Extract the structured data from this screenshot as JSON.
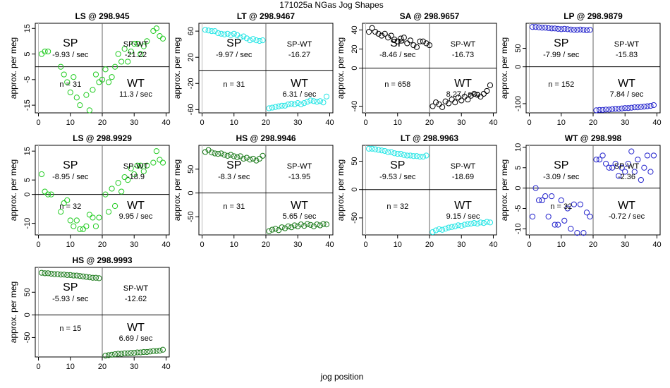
{
  "figure_title": "171025a    NGas Jog Shapes",
  "xlabel": "jog position",
  "ylabel": "approx. per meg",
  "colors": {
    "green": "#22cc22",
    "cyan": "#22e5e5",
    "black": "#000000",
    "blue": "#2222cc",
    "darkgreen": "#1a7a1a"
  },
  "chart_data": [
    {
      "type": "scatter",
      "title": "LS @ 298.945",
      "color": "green",
      "xlim": [
        -1,
        41
      ],
      "ylim": [
        -18,
        17
      ],
      "yticks": [
        -15,
        -5,
        5,
        15
      ],
      "xticks": [
        0,
        10,
        20,
        30,
        40
      ],
      "n_label": "n = 31",
      "sp_label": "SP",
      "sp_value": "-9.93 / sec",
      "wt_label": "WT",
      "wt_value": "11.3 / sec",
      "spwt_label": "SP-WT",
      "spwt_value": "-21.22",
      "x": [
        1,
        2,
        3,
        7,
        8,
        9,
        10,
        11,
        12,
        13,
        15,
        16,
        17,
        18,
        19,
        20,
        21,
        22,
        23,
        24,
        25,
        26,
        27,
        28,
        29,
        30,
        31,
        32,
        33,
        34,
        36,
        37,
        38,
        39
      ],
      "y": [
        5,
        6,
        6,
        0,
        -3,
        -6,
        -10,
        -4,
        -12,
        -15,
        -11,
        -17,
        -9,
        -3,
        -6,
        -5,
        -1,
        -6,
        -4,
        0,
        5,
        2,
        7,
        2,
        6,
        9,
        9,
        5,
        8,
        10,
        14,
        15,
        12,
        11
      ]
    },
    {
      "type": "scatter",
      "title": "LT @ 298.9467",
      "color": "cyan",
      "xlim": [
        -1,
        41
      ],
      "ylim": [
        -65,
        72
      ],
      "yticks": [
        -60,
        -20,
        20,
        60
      ],
      "xticks": [
        0,
        10,
        20,
        30,
        40
      ],
      "n_label": "n = 31",
      "sp_label": "SP",
      "sp_value": "-9.97 / sec",
      "wt_label": "WT",
      "wt_value": "6.31 / sec",
      "spwt_label": "SP-WT",
      "spwt_value": "-16.27",
      "x": [
        1,
        2,
        3,
        4,
        5,
        6,
        7,
        8,
        9,
        10,
        11,
        12,
        13,
        14,
        15,
        16,
        17,
        18,
        19,
        21,
        22,
        23,
        24,
        25,
        26,
        27,
        28,
        29,
        30,
        31,
        32,
        33,
        34,
        35,
        36,
        37,
        38,
        39
      ],
      "y": [
        62,
        61,
        60,
        60,
        57,
        56,
        55,
        56,
        54,
        56,
        54,
        50,
        52,
        49,
        46,
        48,
        46,
        45,
        46,
        -58,
        -57,
        -56,
        -55,
        -54,
        -54,
        -52,
        -51,
        -52,
        -50,
        -52,
        -50,
        -48,
        -46,
        -47,
        -48,
        -47,
        -49,
        -40
      ]
    },
    {
      "type": "scatter",
      "title": "SA @ 298.9657",
      "color": "black",
      "xlim": [
        -1,
        41
      ],
      "ylim": [
        -47,
        47
      ],
      "yticks": [
        -40,
        0,
        20,
        40
      ],
      "xticks": [
        0,
        10,
        20,
        30,
        40
      ],
      "n_label": "n = 658",
      "sp_label": "SP",
      "sp_value": "-8.46 / sec",
      "wt_label": "WT",
      "wt_value": "8.27 / sec",
      "spwt_label": "SP-WT",
      "spwt_value": "-16.73",
      "x": [
        1,
        2,
        3,
        4,
        5,
        6,
        7,
        8,
        9,
        10,
        11,
        12,
        13,
        14,
        15,
        16,
        17,
        18,
        19,
        20,
        21,
        22,
        23,
        24,
        25,
        26,
        27,
        28,
        29,
        30,
        31,
        32,
        33,
        34,
        35,
        36,
        37,
        38,
        39
      ],
      "y": [
        38,
        42,
        38,
        36,
        34,
        36,
        32,
        34,
        30,
        28,
        31,
        32,
        26,
        29,
        24,
        22,
        28,
        28,
        26,
        24,
        -40,
        -36,
        -38,
        -41,
        -35,
        -37,
        -33,
        -36,
        -31,
        -34,
        -30,
        -33,
        -29,
        -27,
        -28,
        -30,
        -27,
        -24,
        -18
      ]
    },
    {
      "type": "scatter",
      "title": "LP @ 298.9879",
      "color": "blue",
      "xlim": [
        -1,
        41
      ],
      "ylim": [
        -125,
        118
      ],
      "yticks": [
        -100,
        0,
        50
      ],
      "xticks": [
        0,
        10,
        20,
        30,
        40
      ],
      "n_label": "n = 152",
      "sp_label": "SP",
      "sp_value": "-7.99 / sec",
      "wt_label": "WT",
      "wt_value": "7.84 / sec",
      "spwt_label": "SP-WT",
      "spwt_value": "-15.83",
      "x": [
        1,
        2,
        3,
        4,
        5,
        6,
        7,
        8,
        9,
        10,
        11,
        12,
        13,
        14,
        15,
        16,
        17,
        18,
        19,
        21,
        22,
        23,
        24,
        25,
        26,
        27,
        28,
        29,
        30,
        31,
        32,
        33,
        34,
        35,
        36,
        37,
        38,
        39
      ],
      "y": [
        108,
        108,
        107,
        106,
        106,
        105,
        104,
        104,
        103,
        102,
        103,
        102,
        101,
        100,
        100,
        101,
        100,
        99,
        100,
        -118,
        -117,
        -117,
        -116,
        -116,
        -115,
        -114,
        -114,
        -113,
        -112,
        -112,
        -111,
        -110,
        -110,
        -109,
        -108,
        -107,
        -106,
        -104
      ]
    },
    {
      "type": "scatter",
      "title": "LS @ 298.9929",
      "color": "green",
      "xlim": [
        -1,
        41
      ],
      "ylim": [
        -14,
        17
      ],
      "yticks": [
        -10,
        0,
        5,
        15
      ],
      "xticks": [
        0,
        10,
        20,
        30,
        40
      ],
      "n_label": "n = 32",
      "sp_label": "SP",
      "sp_value": "-8.95 / sec",
      "wt_label": "WT",
      "wt_value": "9.95 / sec",
      "spwt_label": "SP-WT",
      "spwt_value": "-18.9",
      "x": [
        1,
        2,
        3,
        4,
        7,
        8,
        9,
        10,
        11,
        12,
        13,
        14,
        15,
        16,
        17,
        18,
        19,
        21,
        22,
        23,
        24,
        25,
        26,
        27,
        28,
        29,
        30,
        31,
        32,
        33,
        34,
        36,
        37,
        38,
        39
      ],
      "y": [
        7,
        1,
        0,
        0,
        -6,
        -3,
        -2,
        -9,
        -11,
        -9,
        -12,
        -12,
        -11,
        -7,
        -8,
        -11,
        -8,
        0,
        -6,
        2,
        -4,
        4,
        1,
        6,
        5,
        9,
        7,
        10,
        10,
        8,
        10,
        11,
        15,
        12,
        11
      ]
    },
    {
      "type": "scatter",
      "title": "HS @ 298.9946",
      "color": "darkgreen",
      "xlim": [
        -1,
        41
      ],
      "ylim": [
        -88,
        100
      ],
      "yticks": [
        -50,
        0,
        50
      ],
      "xticks": [
        0,
        10,
        20,
        30,
        40
      ],
      "n_label": "n = 31",
      "sp_label": "SP",
      "sp_value": "-8.3 / sec",
      "wt_label": "WT",
      "wt_value": "5.65 / sec",
      "spwt_label": "SP-WT",
      "spwt_value": "-13.95",
      "x": [
        1,
        2,
        3,
        4,
        5,
        6,
        7,
        8,
        9,
        10,
        11,
        12,
        13,
        14,
        15,
        16,
        17,
        18,
        19,
        21,
        22,
        23,
        24,
        25,
        26,
        27,
        28,
        29,
        30,
        31,
        32,
        33,
        34,
        35,
        36,
        37,
        38,
        39
      ],
      "y": [
        86,
        90,
        85,
        83,
        82,
        83,
        80,
        78,
        80,
        77,
        75,
        77,
        72,
        74,
        70,
        72,
        68,
        72,
        78,
        -80,
        -77,
        -75,
        -78,
        -72,
        -74,
        -70,
        -72,
        -68,
        -70,
        -66,
        -69,
        -65,
        -67,
        -70,
        -66,
        -68,
        -65,
        -66
      ]
    },
    {
      "type": "scatter",
      "title": "LT @ 298.9963",
      "color": "cyan",
      "xlim": [
        -1,
        41
      ],
      "ylim": [
        -80,
        78
      ],
      "yticks": [
        -50,
        0,
        50
      ],
      "xticks": [
        0,
        10,
        20,
        30,
        40
      ],
      "n_label": "n = 32",
      "sp_label": "SP",
      "sp_value": "-9.53 / sec",
      "wt_label": "WT",
      "wt_value": "9.15 / sec",
      "spwt_label": "SP-WT",
      "spwt_value": "-18.69",
      "x": [
        1,
        2,
        3,
        4,
        5,
        6,
        7,
        8,
        9,
        10,
        11,
        12,
        13,
        14,
        15,
        16,
        17,
        18,
        19,
        21,
        22,
        23,
        24,
        25,
        26,
        27,
        28,
        29,
        30,
        31,
        32,
        33,
        34,
        35,
        36,
        37,
        38,
        39
      ],
      "y": [
        72,
        72,
        71,
        70,
        69,
        68,
        66,
        66,
        64,
        63,
        63,
        61,
        60,
        60,
        59,
        59,
        58,
        58,
        60,
        -75,
        -72,
        -70,
        -71,
        -69,
        -67,
        -66,
        -65,
        -63,
        -64,
        -62,
        -61,
        -60,
        -59,
        -60,
        -58,
        -59,
        -57,
        -58
      ]
    },
    {
      "type": "scatter",
      "title": "WT @ 298.998",
      "color": "blue",
      "xlim": [
        -1,
        41
      ],
      "ylim": [
        -11.5,
        10.5
      ],
      "yticks": [
        -10,
        -5,
        0,
        5,
        10
      ],
      "xticks": [
        0,
        10,
        20,
        30,
        40
      ],
      "n_label": "n = 32",
      "sp_label": "SP",
      "sp_value": "-3.09 / sec",
      "wt_label": "WT",
      "wt_value": "-0.72 / sec",
      "spwt_label": "SP-WT",
      "spwt_value": "-2.36",
      "x": [
        1,
        2,
        3,
        4,
        5,
        6,
        7,
        8,
        9,
        10,
        11,
        12,
        13,
        14,
        15,
        16,
        17,
        18,
        19,
        21,
        22,
        23,
        24,
        25,
        26,
        27,
        28,
        29,
        30,
        31,
        32,
        33,
        34,
        35,
        36,
        37,
        38,
        39
      ],
      "y": [
        -7,
        0,
        -3,
        -3,
        -2,
        -7,
        -2,
        -9,
        -9,
        -3,
        -8,
        -5,
        -10,
        -4,
        -11,
        -4,
        -11,
        -6,
        -7,
        7,
        7,
        8,
        6,
        5,
        5,
        6,
        3,
        5,
        4,
        6,
        9,
        4,
        7,
        2,
        5,
        8,
        4,
        8
      ]
    },
    {
      "type": "scatter",
      "title": "HS @ 298.9993",
      "color": "darkgreen",
      "xlim": [
        -1,
        41
      ],
      "ylim": [
        -93,
        105
      ],
      "yticks": [
        -50,
        0,
        50
      ],
      "xticks": [
        0,
        10,
        20,
        30,
        40
      ],
      "n_label": "n = 15",
      "sp_label": "SP",
      "sp_value": "-5.93 / sec",
      "wt_label": "WT",
      "wt_value": "6.69 / sec",
      "spwt_label": "SP-WT",
      "spwt_value": "-12.62",
      "x": [
        1,
        2,
        3,
        4,
        5,
        6,
        7,
        8,
        9,
        10,
        11,
        12,
        13,
        14,
        15,
        16,
        17,
        18,
        19,
        21,
        22,
        23,
        24,
        25,
        26,
        27,
        28,
        29,
        30,
        31,
        32,
        33,
        34,
        35,
        36,
        37,
        38,
        39
      ],
      "y": [
        93,
        92,
        92,
        91,
        90,
        90,
        89,
        89,
        88,
        88,
        87,
        87,
        86,
        85,
        84,
        83,
        82,
        82,
        81,
        -90,
        -89,
        -88,
        -87,
        -86,
        -86,
        -85,
        -85,
        -84,
        -84,
        -83,
        -83,
        -82,
        -82,
        -81,
        -80,
        -80,
        -79,
        -77
      ]
    }
  ]
}
